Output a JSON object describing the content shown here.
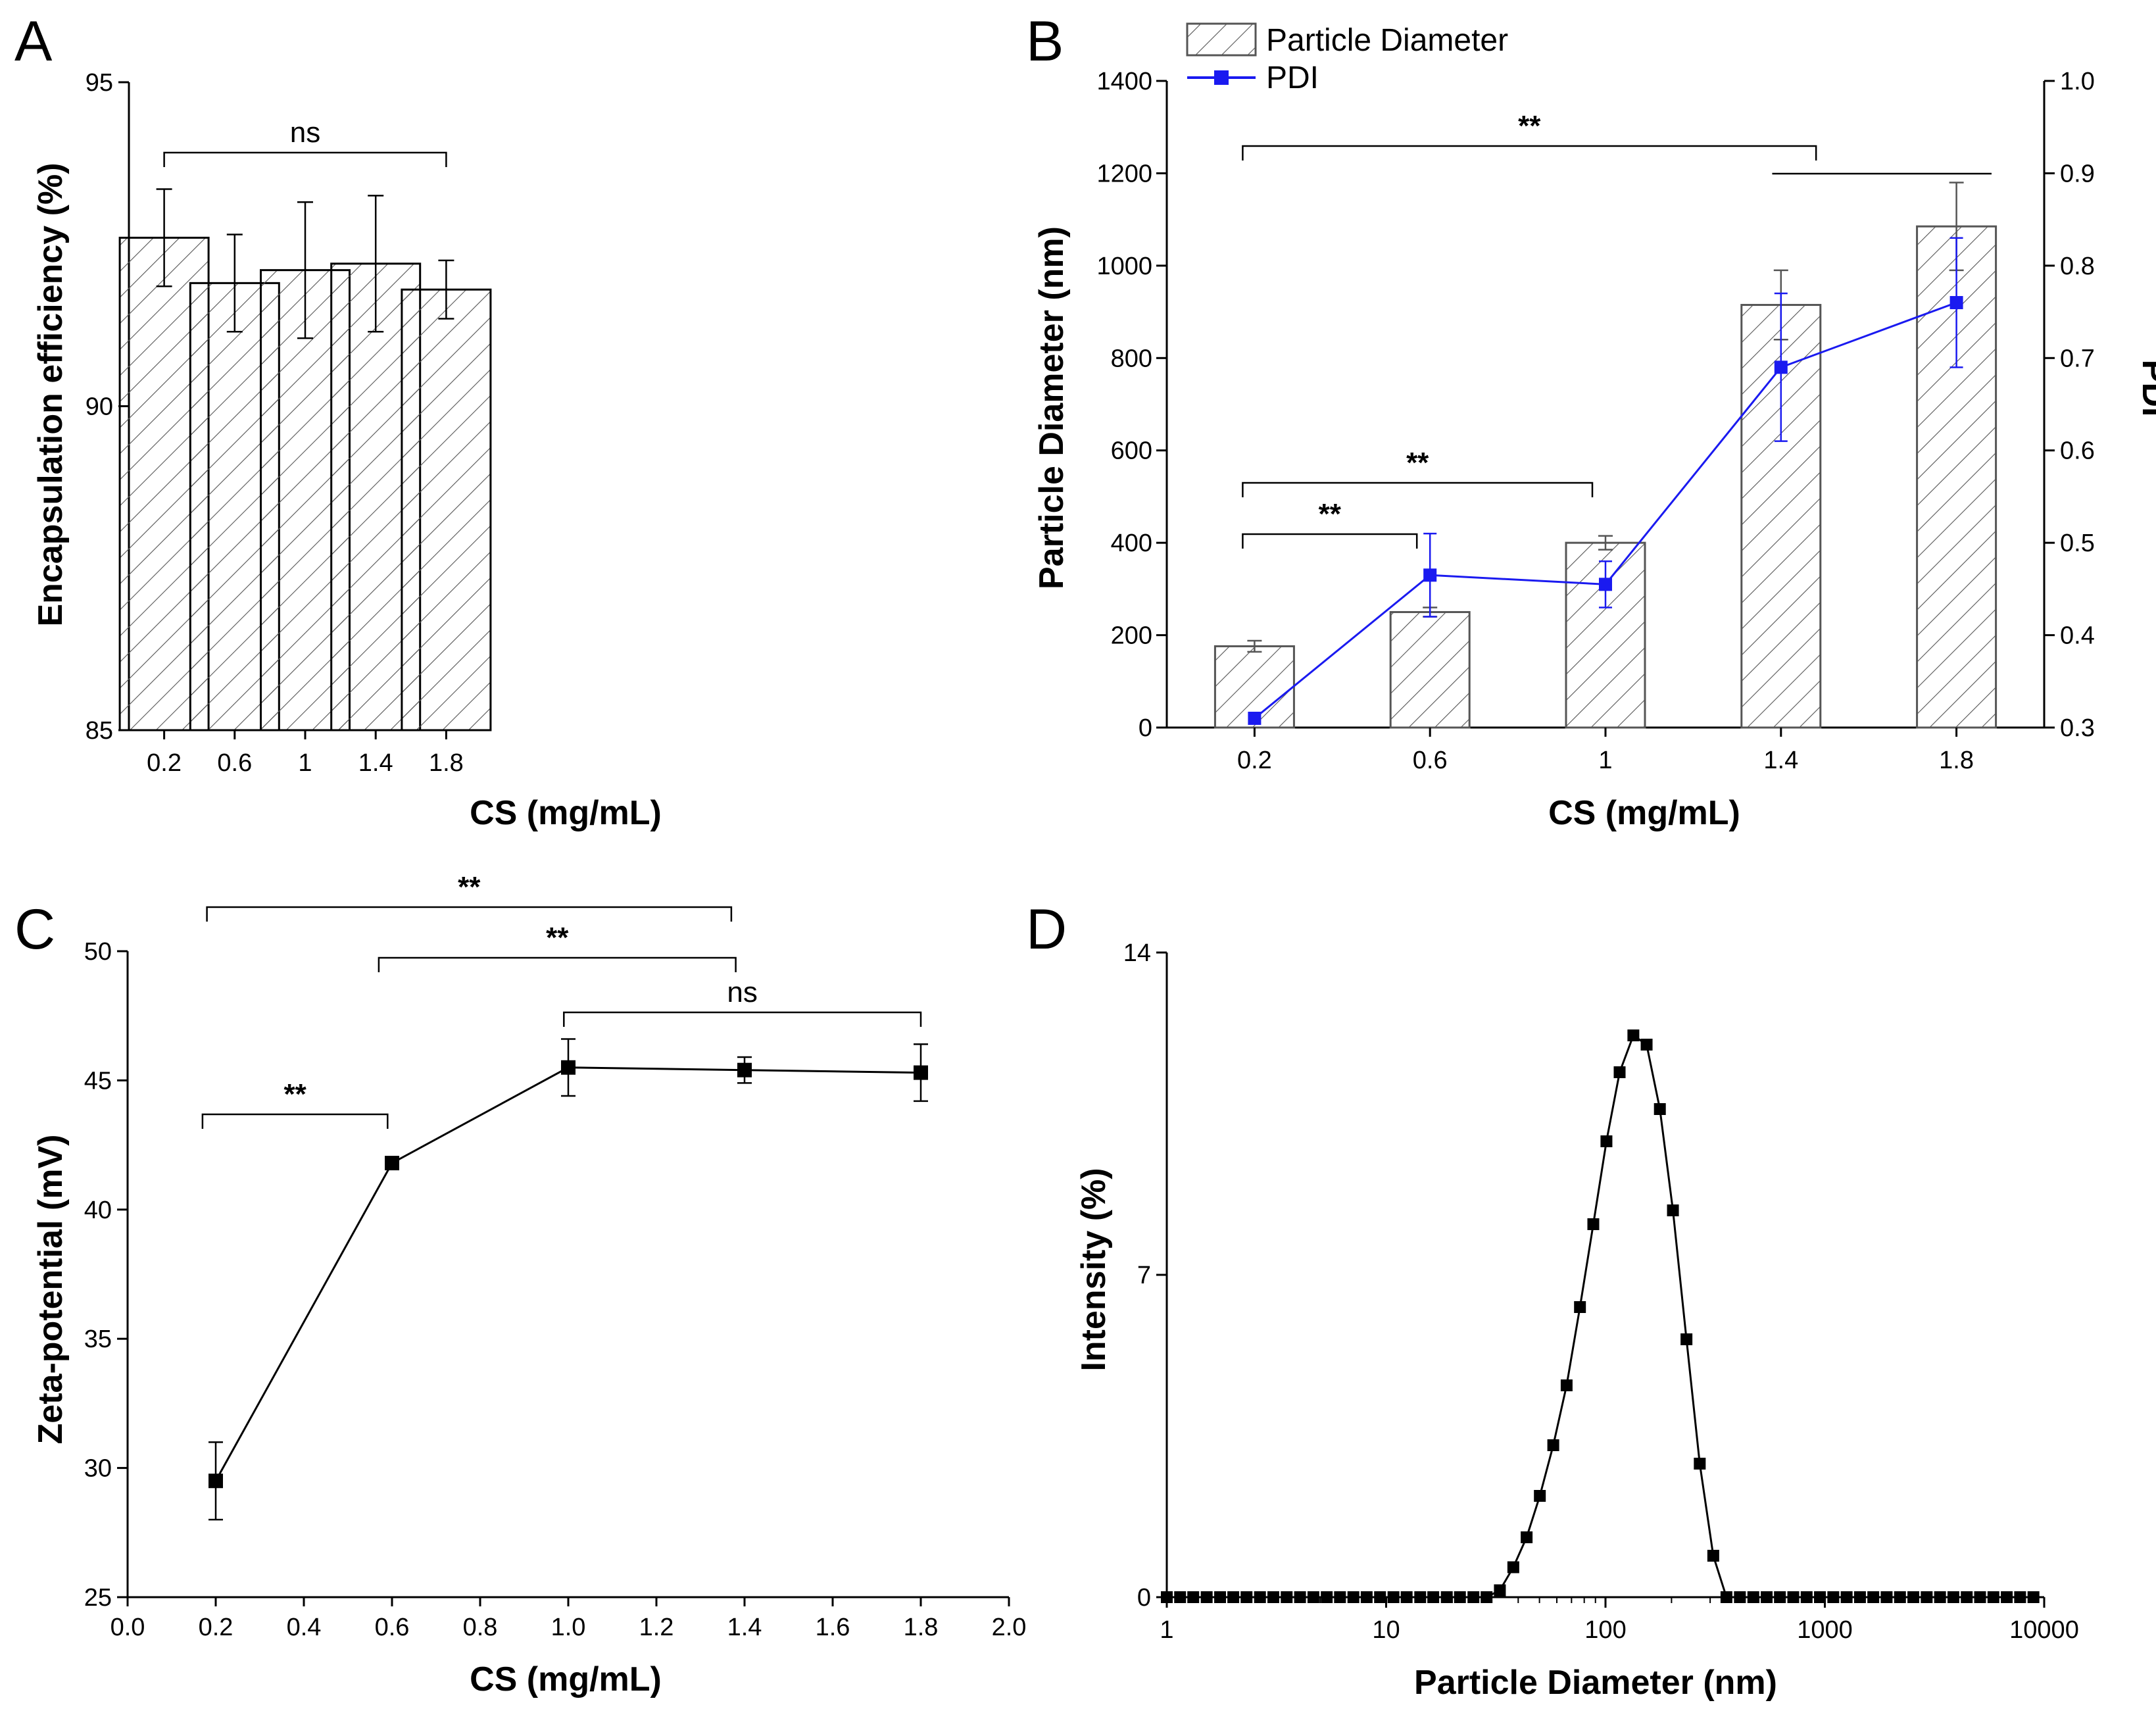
{
  "chart_data": [
    {
      "panel": "A",
      "type": "bar",
      "xlabel": "CS (mg/mL)",
      "ylabel": "Encapsulation efficiency (%)",
      "categories": [
        "0.2",
        "0.6",
        "1",
        "1.4",
        "1.8"
      ],
      "values": [
        92.6,
        91.9,
        92.1,
        92.2,
        91.8
      ],
      "errors": [
        0.75,
        0.75,
        1.05,
        1.05,
        0.45
      ],
      "ylim": [
        85,
        95
      ],
      "yticks": [
        "85",
        "90",
        "95"
      ],
      "brackets": [
        {
          "from": 0,
          "to": 4,
          "text": "ns"
        }
      ]
    },
    {
      "panel": "B",
      "type": "bar",
      "xlabel": "CS (mg/mL)",
      "ylabel": "Particle Diameter (nm)",
      "ylabel_right": "PDI",
      "categories": [
        "0.2",
        "0.6",
        "1",
        "1.4",
        "1.8"
      ],
      "series": [
        {
          "name": "Particle Diameter",
          "type": "bar",
          "axis": "left",
          "values": [
            176,
            250,
            400,
            915,
            1085
          ],
          "errors": [
            12,
            10,
            15,
            75,
            95
          ],
          "color": "#555555"
        },
        {
          "name": "PDI",
          "type": "line",
          "axis": "right",
          "values": [
            0.31,
            0.465,
            0.455,
            0.69,
            0.76
          ],
          "errors": [
            0.0,
            0.045,
            0.025,
            0.08,
            0.07
          ],
          "color": "#1a1af0"
        }
      ],
      "ylim": [
        0,
        1400
      ],
      "ylim_right": [
        0.3,
        1.0
      ],
      "yticks": [
        "0",
        "200",
        "400",
        "600",
        "800",
        "1000",
        "1200",
        "1400"
      ],
      "yticks_right": [
        "0.3",
        "0.4",
        "0.5",
        "0.6",
        "0.7",
        "0.8",
        "0.9",
        "1.0"
      ],
      "legend": "top-left",
      "brackets": [
        {
          "from": 0,
          "to": 1,
          "text": "**"
        },
        {
          "from": 0,
          "to": 2,
          "text": "**"
        },
        {
          "from": 0,
          "to": 4,
          "text": "**"
        }
      ]
    },
    {
      "panel": "C",
      "type": "line",
      "xlabel": "CS (mg/mL)",
      "ylabel": "Zeta-potential (mV)",
      "x": [
        0.2,
        0.6,
        1.0,
        1.4,
        1.8
      ],
      "y": [
        29.5,
        41.8,
        45.5,
        45.4,
        45.3
      ],
      "errors": [
        1.5,
        0.0,
        1.1,
        0.5,
        1.1
      ],
      "xlim": [
        0.0,
        2.0
      ],
      "ylim": [
        25,
        50
      ],
      "xticks": [
        "0.0",
        "0.2",
        "0.4",
        "0.6",
        "0.8",
        "1.0",
        "1.2",
        "1.4",
        "1.6",
        "1.8",
        "2.0"
      ],
      "yticks": [
        "25",
        "30",
        "35",
        "40",
        "45",
        "50"
      ],
      "brackets": [
        {
          "from": 0.17,
          "to": 0.59,
          "text": "**"
        },
        {
          "from": 0.18,
          "to": 1.37,
          "text": "**"
        },
        {
          "from": 0.57,
          "to": 1.38,
          "text": "**"
        },
        {
          "from": 0.99,
          "to": 1.8,
          "text": "ns"
        }
      ]
    },
    {
      "panel": "D",
      "type": "line",
      "xscale": "log",
      "xlabel": "Particle Diameter (nm)",
      "ylabel": "Intensity (%)",
      "x": [
        1,
        1.15,
        1.32,
        1.52,
        1.75,
        2.01,
        2.31,
        2.66,
        3.06,
        3.52,
        4.05,
        4.66,
        5.36,
        6.16,
        7.09,
        8.15,
        9.38,
        10.8,
        12.4,
        14.3,
        16.4,
        18.9,
        21.7,
        25.0,
        28.7,
        33.0,
        38.0,
        43.7,
        50.2,
        57.8,
        66.5,
        76.5,
        88.0,
        101,
        116,
        134,
        154,
        177,
        203,
        234,
        269,
        310,
        356,
        410,
        472,
        543,
        624,
        718,
        826,
        950,
        1093,
        1257,
        1446,
        1663,
        1913,
        2201,
        2532,
        2913,
        3351,
        3855,
        4435,
        5101,
        5868,
        6751,
        7766,
        8934
      ],
      "y": [
        0,
        0,
        0,
        0,
        0,
        0,
        0,
        0,
        0,
        0,
        0,
        0,
        0,
        0,
        0,
        0,
        0,
        0,
        0,
        0,
        0,
        0,
        0,
        0,
        0,
        0.15,
        0.65,
        1.3,
        2.2,
        3.3,
        4.6,
        6.3,
        8.1,
        9.9,
        11.4,
        12.2,
        12.0,
        10.6,
        8.4,
        5.6,
        2.9,
        0.9,
        0,
        0,
        0,
        0,
        0,
        0,
        0,
        0,
        0,
        0,
        0,
        0,
        0,
        0,
        0,
        0,
        0,
        0,
        0,
        0,
        0,
        0,
        0,
        0
      ],
      "xlim": [
        1,
        10000
      ],
      "ylim": [
        0,
        14
      ],
      "xticks": [
        "1",
        "10",
        "100",
        "1000",
        "10000"
      ],
      "yticks": [
        "0",
        "7",
        "14"
      ]
    }
  ]
}
